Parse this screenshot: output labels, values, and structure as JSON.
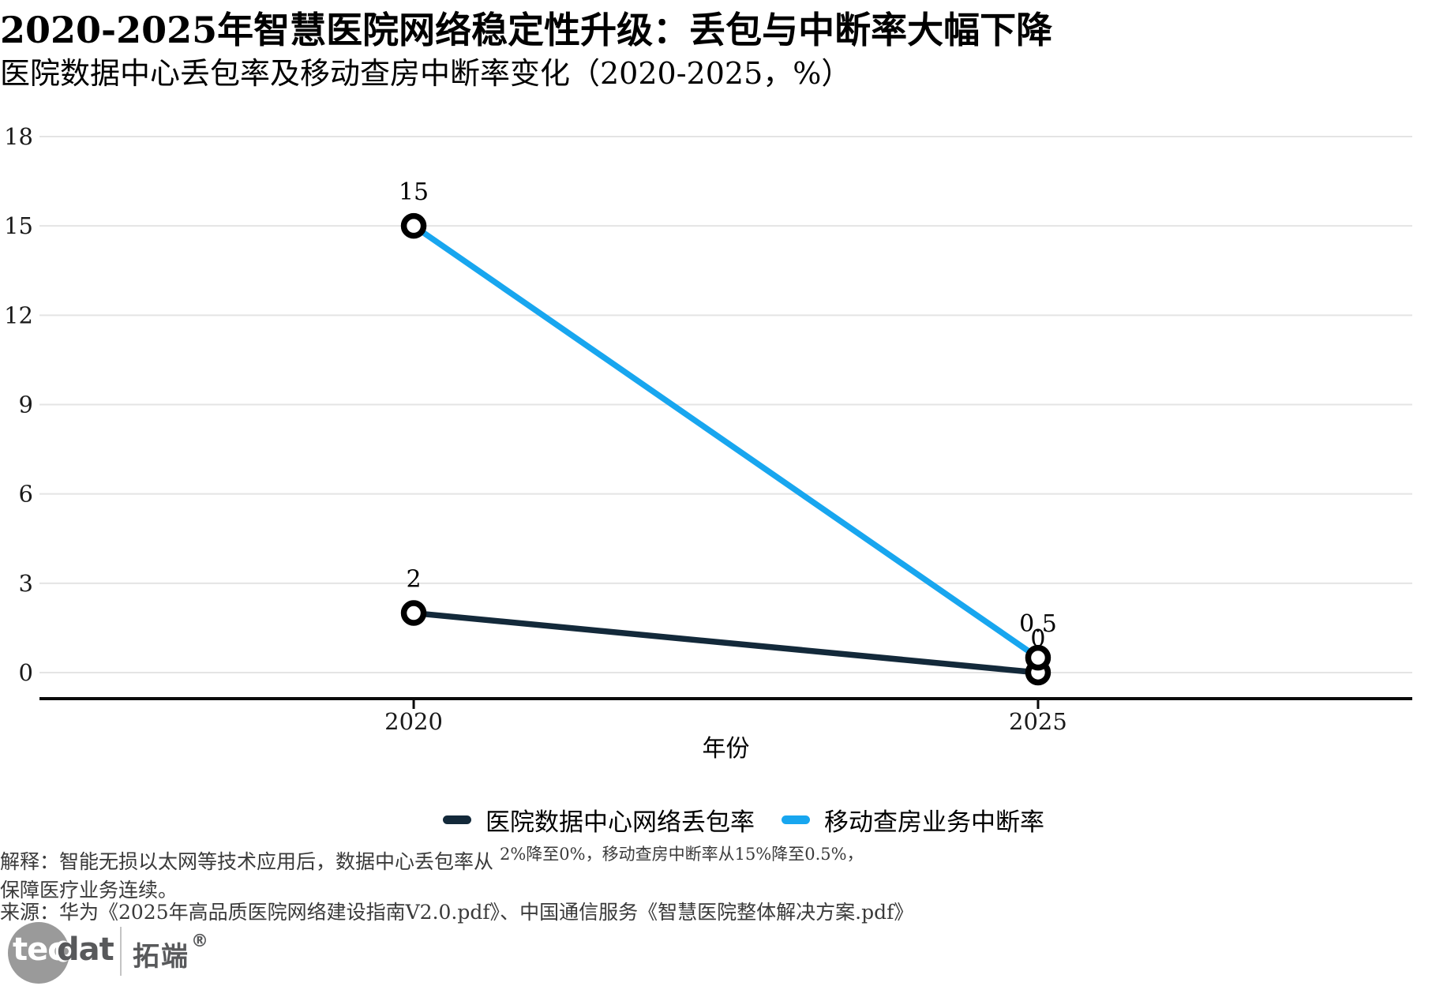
{
  "chart_data": {
    "type": "line",
    "title": "2020-2025年智慧医院网络稳定性升级：丢包与中断率大幅下降",
    "subtitle": "医院数据中心丢包率及移动查房中断率变化（2020-2025，%）",
    "categories": [
      "2020",
      "2025"
    ],
    "xlabel": "年份",
    "ylim": [
      0,
      18
    ],
    "yticks": [
      0,
      3,
      6,
      9,
      12,
      15,
      18
    ],
    "grid": "horizontal-light",
    "legend_position": "bottom-center",
    "series": [
      {
        "name": "医院数据中心网络丢包率",
        "values": [
          2,
          0
        ],
        "point_labels": [
          "2",
          "0"
        ],
        "color": "#13293a"
      },
      {
        "name": "移动查房业务中断率",
        "values": [
          15,
          0.5
        ],
        "point_labels": [
          "15",
          "0.5"
        ],
        "color": "#18a6ef"
      }
    ],
    "marker": {
      "shape": "open-circle",
      "stroke_color": "#000000",
      "fill": "#ffffff"
    }
  },
  "colors": {
    "gridline": "#e4e4e4",
    "axis_line": "#0a0a0a",
    "tick_label": "#1a1a1a",
    "data_label": "#000000"
  },
  "footnote": {
    "explain_prefix": "解释：智能无损以太网等技术应用后，数据中心丢包率从 ",
    "explain_raised": "2%降至0%，移动查房中断率从15%降至0.5%，",
    "explain_line2": "保障医疗业务连续。",
    "source": "来源：华为《2025年高品质医院网络建设指南V2.0.pdf》、中国通信服务《智慧医院整体解决方案.pdf》"
  },
  "logo": {
    "tec": "tec",
    "dat": "dat",
    "cn": "拓端",
    "reg": "®"
  }
}
